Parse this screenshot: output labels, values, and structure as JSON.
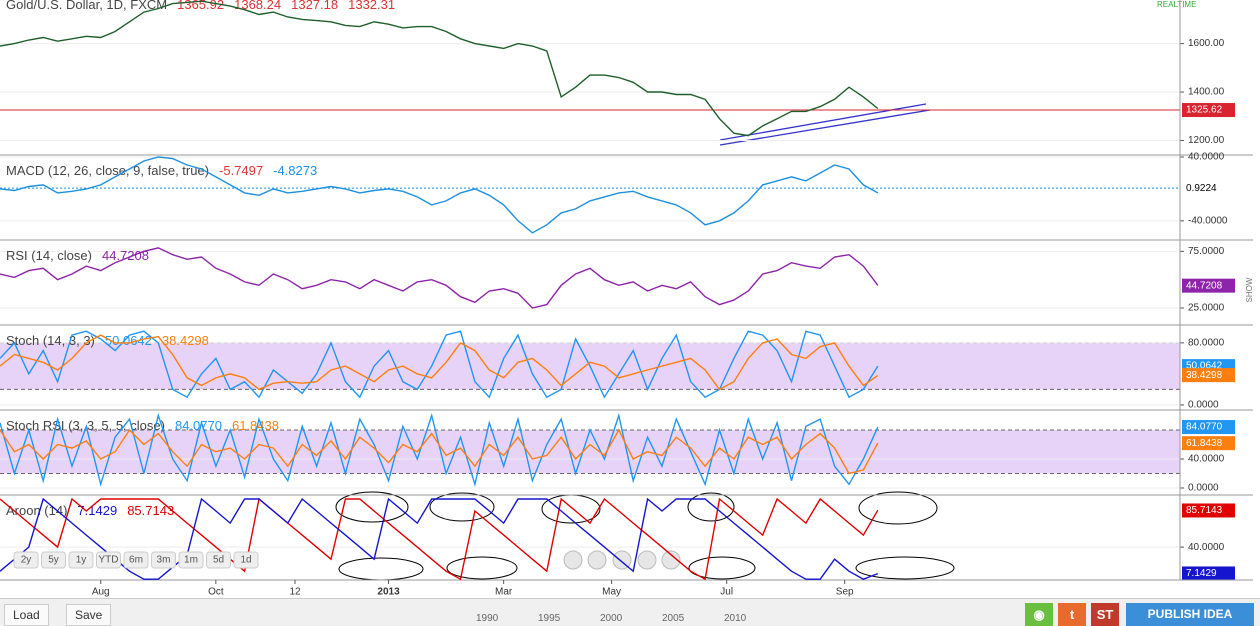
{
  "x_axis": {
    "xlim": [
      0,
      82
    ],
    "xticks": [
      {
        "value": 7,
        "label": "Aug"
      },
      {
        "value": 15,
        "label": "Oct"
      },
      {
        "value": 20.5,
        "label": "12"
      },
      {
        "value": 27,
        "label": "2013"
      },
      {
        "value": 35,
        "label": "Mar"
      },
      {
        "value": 42.5,
        "label": "May"
      },
      {
        "value": 50.5,
        "label": "Jul"
      },
      {
        "value": 58.7,
        "label": "Sep"
      }
    ]
  },
  "chart_data": [
    {
      "type": "line",
      "title": "Gold/U.S. Dollar, 1D, FXCM",
      "header_values": [
        {
          "text": "1365.92",
          "color": "#d33"
        },
        {
          "text": "1368.24",
          "color": "#d33"
        },
        {
          "text": "1327.18",
          "color": "#d33"
        },
        {
          "text": "1332.31",
          "color": "#d33"
        }
      ],
      "ylim": [
        1140,
        1780
      ],
      "yticks": [
        {
          "value": 1200,
          "label": "1200.00"
        },
        {
          "value": 1400,
          "label": "1400.00"
        },
        {
          "value": 1600,
          "label": "1600.00"
        }
      ],
      "series": [
        {
          "color": "#1f5f2a",
          "values": [
            1590,
            1600,
            1615,
            1625,
            1610,
            1620,
            1630,
            1625,
            1650,
            1690,
            1730,
            1745,
            1765,
            1770,
            1775,
            1765,
            1755,
            1740,
            1720,
            1730,
            1710,
            1700,
            1695,
            1690,
            1675,
            1670,
            1690,
            1680,
            1665,
            1670,
            1670,
            1650,
            1620,
            1600,
            1590,
            1580,
            1600,
            1590,
            1570,
            1380,
            1420,
            1470,
            1470,
            1460,
            1440,
            1400,
            1400,
            1390,
            1390,
            1370,
            1290,
            1230,
            1220,
            1260,
            1290,
            1320,
            1320,
            1340,
            1370,
            1420,
            1380,
            1332
          ]
        }
      ],
      "last_labels": [
        {
          "value": 1325.62,
          "label": "1325.62",
          "color": "#d9232e",
          "line": true
        }
      ]
    },
    {
      "type": "line",
      "title": "MACD (12, 26, close, 9, false, true)",
      "header_values": [
        {
          "text": "-5.7497",
          "color": "#d33"
        },
        {
          "text": "-4.8273",
          "color": "#1e90e0"
        }
      ],
      "ylim": [
        -64,
        42.5
      ],
      "yticks": [
        {
          "value": 40,
          "label": "40.0000"
        },
        {
          "value": -40,
          "label": "-40.0000"
        }
      ],
      "series": [
        {
          "color": "#1e90e0",
          "values": [
            0,
            -2,
            3,
            5,
            -5,
            -3,
            0,
            5,
            15,
            25,
            35,
            40,
            38,
            30,
            25,
            15,
            5,
            -5,
            -8,
            0,
            -5,
            -3,
            0,
            3,
            0,
            -5,
            -2,
            0,
            -3,
            -10,
            -20,
            -15,
            -5,
            0,
            -8,
            -20,
            -40,
            -55,
            -45,
            -30,
            -25,
            -15,
            -10,
            -5,
            -3,
            -10,
            -15,
            -20,
            -30,
            -45,
            -40,
            -30,
            -15,
            5,
            10,
            15,
            10,
            20,
            30,
            25,
            5,
            -5
          ]
        }
      ],
      "last_labels": [
        {
          "value": 0.9224,
          "label": "0.9224",
          "color": "#ffffff",
          "line": true
        }
      ]
    },
    {
      "type": "line",
      "title": "RSI (14, close)",
      "header_values": [
        {
          "text": "44.7208",
          "color": "#8e24aa"
        }
      ],
      "ylim": [
        10,
        85
      ],
      "yticks": [
        {
          "value": 25,
          "label": "25.0000"
        },
        {
          "value": 75,
          "label": "75.0000"
        }
      ],
      "series": [
        {
          "color": "#8e24aa",
          "values": [
            55,
            52,
            58,
            60,
            50,
            55,
            62,
            58,
            65,
            70,
            75,
            78,
            72,
            68,
            70,
            60,
            55,
            48,
            45,
            55,
            50,
            42,
            45,
            50,
            48,
            42,
            50,
            45,
            40,
            48,
            50,
            45,
            35,
            30,
            40,
            42,
            38,
            25,
            28,
            45,
            55,
            60,
            50,
            45,
            48,
            40,
            45,
            42,
            48,
            35,
            28,
            32,
            40,
            55,
            58,
            65,
            62,
            60,
            70,
            72,
            62,
            45
          ]
        }
      ],
      "last_labels": [
        {
          "value": 44.7208,
          "label": "44.7208",
          "color": "#8e24aa"
        }
      ]
    },
    {
      "type": "line",
      "title": "Stoch (14, 3, 3)",
      "header_values": [
        {
          "text": "50.0642",
          "color": "#2196f3"
        },
        {
          "text": "38.4298",
          "color": "#ff7f0e"
        }
      ],
      "ylim": [
        -6.5,
        103
      ],
      "yticks": [
        {
          "value": 0,
          "label": "0.0000"
        },
        {
          "value": 80,
          "label": "80.0000"
        }
      ],
      "band": [
        20,
        80
      ],
      "series": [
        {
          "color": "#2196f3",
          "values": [
            60,
            80,
            40,
            70,
            30,
            90,
            95,
            85,
            70,
            90,
            95,
            80,
            20,
            10,
            40,
            60,
            20,
            30,
            10,
            45,
            30,
            15,
            40,
            80,
            30,
            10,
            50,
            70,
            30,
            20,
            50,
            90,
            95,
            30,
            10,
            60,
            90,
            40,
            10,
            20,
            85,
            50,
            10,
            40,
            70,
            20,
            60,
            90,
            30,
            10,
            20,
            60,
            95,
            90,
            70,
            30,
            95,
            90,
            50,
            10,
            20,
            50
          ]
        },
        {
          "color": "#ff7f0e",
          "values": [
            50,
            65,
            60,
            55,
            45,
            60,
            80,
            90,
            80,
            80,
            85,
            88,
            65,
            35,
            25,
            35,
            40,
            35,
            20,
            28,
            30,
            28,
            30,
            45,
            50,
            40,
            30,
            45,
            50,
            40,
            35,
            55,
            80,
            70,
            45,
            35,
            55,
            60,
            45,
            25,
            40,
            55,
            50,
            35,
            40,
            45,
            50,
            55,
            60,
            45,
            20,
            30,
            60,
            80,
            85,
            65,
            60,
            75,
            80,
            50,
            25,
            38
          ]
        }
      ],
      "last_labels": [
        {
          "value": 50.0642,
          "label": "50.0642",
          "color": "#2196f3"
        },
        {
          "value": 38.4298,
          "label": "38.4298",
          "color": "#ff7f0e"
        }
      ]
    },
    {
      "type": "line",
      "title": "Stoch RSI (3, 3, 5, 5, close)",
      "header_values": [
        {
          "text": "84.0770",
          "color": "#2196f3"
        },
        {
          "text": "61.8438",
          "color": "#ff7f0e"
        }
      ],
      "ylim": [
        -9.7,
        107.6
      ],
      "yticks": [
        {
          "value": 0,
          "label": "0.0000"
        },
        {
          "value": 40,
          "label": "40.0000"
        }
      ],
      "band": [
        20,
        80
      ],
      "series": [
        {
          "color": "#2196f3",
          "values": [
            90,
            20,
            80,
            10,
            95,
            30,
            85,
            5,
            70,
            95,
            20,
            100,
            40,
            10,
            90,
            30,
            80,
            15,
            95,
            40,
            10,
            85,
            30,
            90,
            20,
            95,
            60,
            10,
            85,
            40,
            100,
            20,
            70,
            5,
            90,
            30,
            95,
            10,
            60,
            95,
            20,
            80,
            40,
            100,
            10,
            70,
            30,
            95,
            50,
            5,
            80,
            20,
            95,
            40,
            90,
            10,
            85,
            95,
            30,
            5,
            40,
            84
          ]
        },
        {
          "color": "#ff7f0e",
          "values": [
            80,
            50,
            60,
            40,
            60,
            55,
            65,
            40,
            50,
            80,
            60,
            75,
            50,
            30,
            60,
            50,
            55,
            40,
            60,
            55,
            30,
            60,
            45,
            65,
            40,
            70,
            55,
            35,
            60,
            50,
            75,
            45,
            55,
            30,
            60,
            45,
            70,
            40,
            45,
            70,
            40,
            60,
            45,
            80,
            40,
            50,
            45,
            70,
            55,
            30,
            55,
            40,
            70,
            60,
            70,
            40,
            60,
            75,
            55,
            20,
            25,
            62
          ]
        }
      ],
      "last_labels": [
        {
          "value": 84.077,
          "label": "84.0770",
          "color": "#2196f3"
        },
        {
          "value": 61.8438,
          "label": "61.8438",
          "color": "#ff7f0e"
        }
      ]
    },
    {
      "type": "line",
      "title": "Aroon (14)",
      "header_values": [
        {
          "text": "7.1429",
          "color": "#1515d0"
        },
        {
          "text": "85.7143",
          "color": "#e00000"
        }
      ],
      "ylim": [
        -1,
        105
      ],
      "yticks": [
        {
          "value": 40,
          "label": "40.0000"
        }
      ],
      "series": [
        {
          "color": "#e00000",
          "values": [
            100,
            85,
            70,
            55,
            40,
            100,
            85,
            100,
            100,
            100,
            100,
            100,
            85,
            70,
            55,
            40,
            25,
            10,
            100,
            85,
            70,
            55,
            40,
            25,
            100,
            100,
            85,
            70,
            55,
            40,
            25,
            10,
            0,
            85,
            70,
            55,
            40,
            25,
            10,
            100,
            85,
            70,
            100,
            85,
            70,
            55,
            40,
            25,
            10,
            0,
            100,
            85,
            70,
            55,
            100,
            85,
            70,
            100,
            85,
            70,
            55,
            86
          ]
        },
        {
          "color": "#1515d0",
          "values": [
            10,
            25,
            40,
            100,
            85,
            70,
            55,
            40,
            25,
            10,
            0,
            0,
            15,
            30,
            100,
            85,
            70,
            100,
            100,
            85,
            70,
            100,
            85,
            70,
            55,
            40,
            25,
            100,
            85,
            70,
            100,
            100,
            100,
            100,
            85,
            70,
            100,
            100,
            100,
            85,
            70,
            55,
            40,
            25,
            10,
            100,
            85,
            100,
            100,
            100,
            85,
            70,
            55,
            40,
            25,
            10,
            0,
            0,
            25,
            10,
            0,
            7
          ]
        }
      ],
      "last_labels": [
        {
          "value": 85.7143,
          "label": "85.7143",
          "color": "#e00000"
        },
        {
          "value": 7.1429,
          "label": "7.1429",
          "color": "#1515d0"
        }
      ]
    }
  ],
  "toolbar": {
    "realtime": "REALTIME",
    "show": "SHOW",
    "range_buttons": [
      "2y",
      "5y",
      "1y",
      "YTD",
      "6m",
      "3m",
      "1m",
      "5d",
      "1d"
    ],
    "load": "Load",
    "save": "Save",
    "st": "ST",
    "publish": "PUBLISH IDEA",
    "timeline": [
      "1990",
      "1995",
      "2000",
      "2005",
      "2010"
    ]
  }
}
